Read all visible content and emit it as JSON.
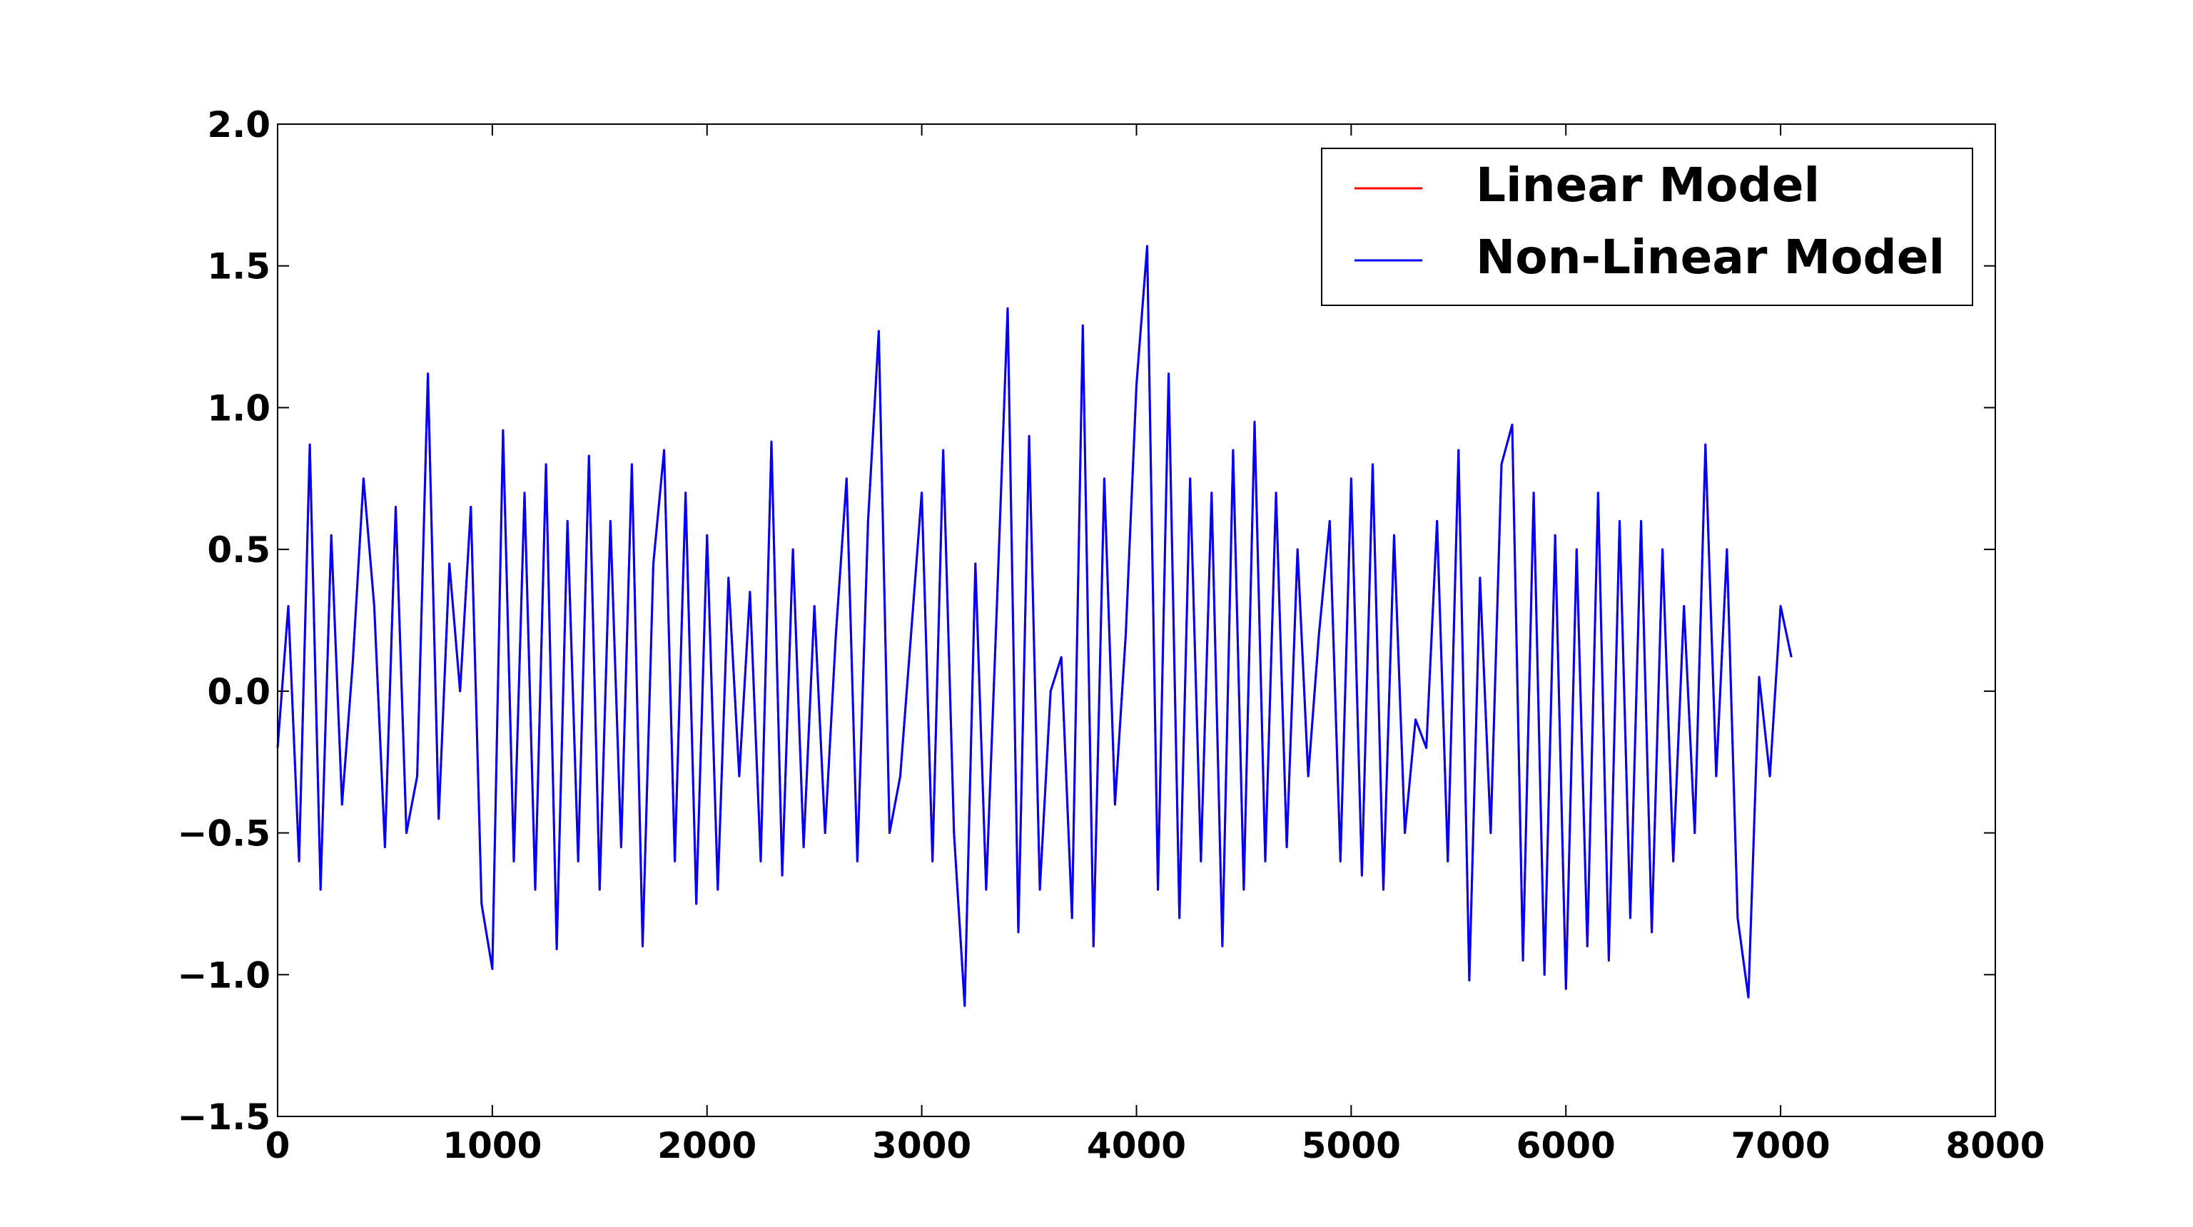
{
  "chart_data": {
    "type": "line",
    "x": [
      0,
      50,
      100,
      150,
      200,
      250,
      300,
      350,
      400,
      450,
      500,
      550,
      600,
      650,
      700,
      750,
      800,
      850,
      900,
      950,
      1000,
      1050,
      1100,
      1150,
      1200,
      1250,
      1300,
      1350,
      1400,
      1450,
      1500,
      1550,
      1600,
      1650,
      1700,
      1750,
      1800,
      1850,
      1900,
      1950,
      2000,
      2050,
      2100,
      2150,
      2200,
      2250,
      2300,
      2350,
      2400,
      2450,
      2500,
      2550,
      2600,
      2650,
      2700,
      2750,
      2800,
      2850,
      2900,
      2950,
      3000,
      3050,
      3100,
      3150,
      3200,
      3250,
      3300,
      3350,
      3400,
      3450,
      3500,
      3550,
      3600,
      3650,
      3700,
      3750,
      3800,
      3850,
      3900,
      3950,
      4000,
      4050,
      4100,
      4150,
      4200,
      4250,
      4300,
      4350,
      4400,
      4450,
      4500,
      4550,
      4600,
      4650,
      4700,
      4750,
      4800,
      4850,
      4900,
      4950,
      5000,
      5050,
      5100,
      5150,
      5200,
      5250,
      5300,
      5350,
      5400,
      5450,
      5500,
      5550,
      5600,
      5650,
      5700,
      5750,
      5800,
      5850,
      5900,
      5950,
      6000,
      6050,
      6100,
      6150,
      6200,
      6250,
      6300,
      6350,
      6400,
      6450,
      6500,
      6550,
      6600,
      6650,
      6700,
      6750,
      6800,
      6850,
      6900,
      6950,
      7000,
      7050
    ],
    "series": [
      {
        "name": "Linear Model",
        "color": "#ff0000",
        "values": [
          -0.2,
          0.3,
          -0.6,
          0.87,
          -0.7,
          0.55,
          -0.4,
          0.1,
          0.75,
          0.3,
          -0.55,
          0.65,
          -0.5,
          -0.3,
          1.12,
          -0.45,
          0.45,
          0.0,
          0.65,
          -0.75,
          -0.98,
          0.92,
          -0.6,
          0.7,
          -0.7,
          0.8,
          -0.91,
          0.6,
          -0.6,
          0.83,
          -0.7,
          0.6,
          -0.55,
          0.8,
          -0.9,
          0.45,
          0.85,
          -0.6,
          0.7,
          -0.75,
          0.55,
          -0.7,
          0.4,
          -0.3,
          0.35,
          -0.6,
          0.88,
          -0.65,
          0.5,
          -0.55,
          0.3,
          -0.5,
          0.2,
          0.75,
          -0.6,
          0.6,
          1.27,
          -0.5,
          -0.3,
          0.2,
          0.7,
          -0.6,
          0.85,
          -0.5,
          -1.11,
          0.45,
          -0.7,
          0.3,
          1.35,
          -0.85,
          0.9,
          -0.7,
          0.0,
          0.12,
          -0.8,
          1.29,
          -0.9,
          0.75,
          -0.4,
          0.2,
          1.08,
          1.57,
          -0.7,
          1.12,
          -0.8,
          0.75,
          -0.6,
          0.7,
          -0.9,
          0.85,
          -0.7,
          0.95,
          -0.6,
          0.7,
          -0.55,
          0.5,
          -0.3,
          0.2,
          0.6,
          -0.6,
          0.75,
          -0.65,
          0.8,
          -0.7,
          0.55,
          -0.5,
          -0.1,
          -0.2,
          0.6,
          -0.6,
          0.85,
          -1.02,
          0.4,
          -0.5,
          0.8,
          0.94,
          -0.95,
          0.7,
          -1.0,
          0.55,
          -1.05,
          0.5,
          -0.9,
          0.7,
          -0.95,
          0.6,
          -0.8,
          0.6,
          -0.85,
          0.5,
          -0.6,
          0.3,
          -0.5,
          0.87,
          -0.3,
          0.5,
          -0.8,
          -1.08,
          0.05,
          -0.3,
          0.3,
          0.12
        ]
      },
      {
        "name": "Non-Linear Model",
        "color": "#0000ff",
        "values": [
          -0.2,
          0.3,
          -0.6,
          0.87,
          -0.7,
          0.55,
          -0.4,
          0.1,
          0.75,
          0.3,
          -0.55,
          0.65,
          -0.5,
          -0.3,
          1.12,
          -0.45,
          0.45,
          0.0,
          0.65,
          -0.75,
          -0.98,
          0.92,
          -0.6,
          0.7,
          -0.7,
          0.8,
          -0.91,
          0.6,
          -0.6,
          0.83,
          -0.7,
          0.6,
          -0.55,
          0.8,
          -0.9,
          0.45,
          0.85,
          -0.6,
          0.7,
          -0.75,
          0.55,
          -0.7,
          0.4,
          -0.3,
          0.35,
          -0.6,
          0.88,
          -0.65,
          0.5,
          -0.55,
          0.3,
          -0.5,
          0.2,
          0.75,
          -0.6,
          0.6,
          1.27,
          -0.5,
          -0.3,
          0.2,
          0.7,
          -0.6,
          0.85,
          -0.5,
          -1.11,
          0.45,
          -0.7,
          0.3,
          1.35,
          -0.85,
          0.9,
          -0.7,
          0.0,
          0.12,
          -0.8,
          1.29,
          -0.9,
          0.75,
          -0.4,
          0.2,
          1.08,
          1.57,
          -0.7,
          1.12,
          -0.8,
          0.75,
          -0.6,
          0.7,
          -0.9,
          0.85,
          -0.7,
          0.95,
          -0.6,
          0.7,
          -0.55,
          0.5,
          -0.3,
          0.2,
          0.6,
          -0.6,
          0.75,
          -0.65,
          0.8,
          -0.7,
          0.55,
          -0.5,
          -0.1,
          -0.2,
          0.6,
          -0.6,
          0.85,
          -1.02,
          0.4,
          -0.5,
          0.8,
          0.94,
          -0.95,
          0.7,
          -1.0,
          0.55,
          -1.05,
          0.5,
          -0.9,
          0.7,
          -0.95,
          0.6,
          -0.8,
          0.6,
          -0.85,
          0.5,
          -0.6,
          0.3,
          -0.5,
          0.87,
          -0.3,
          0.5,
          -0.8,
          -1.08,
          0.05,
          -0.3,
          0.3,
          0.12
        ]
      }
    ],
    "xlim": [
      0,
      8000
    ],
    "xticks": [
      0,
      1000,
      2000,
      3000,
      4000,
      5000,
      6000,
      7000,
      8000
    ],
    "ylim": [
      -1.5,
      2.0
    ],
    "yticks": [
      {
        "value": -1.5,
        "label": "−1.5"
      },
      {
        "value": -1.0,
        "label": "−1.0"
      },
      {
        "value": -0.5,
        "label": "−0.5"
      },
      {
        "value": 0,
        "label": "0.0"
      },
      {
        "value": 0.5,
        "label": "0.5"
      },
      {
        "value": 1,
        "label": "1.0"
      },
      {
        "value": 1.5,
        "label": "1.5"
      },
      {
        "value": 2,
        "label": "2.0"
      }
    ],
    "grid": false,
    "legend": "upper right"
  }
}
